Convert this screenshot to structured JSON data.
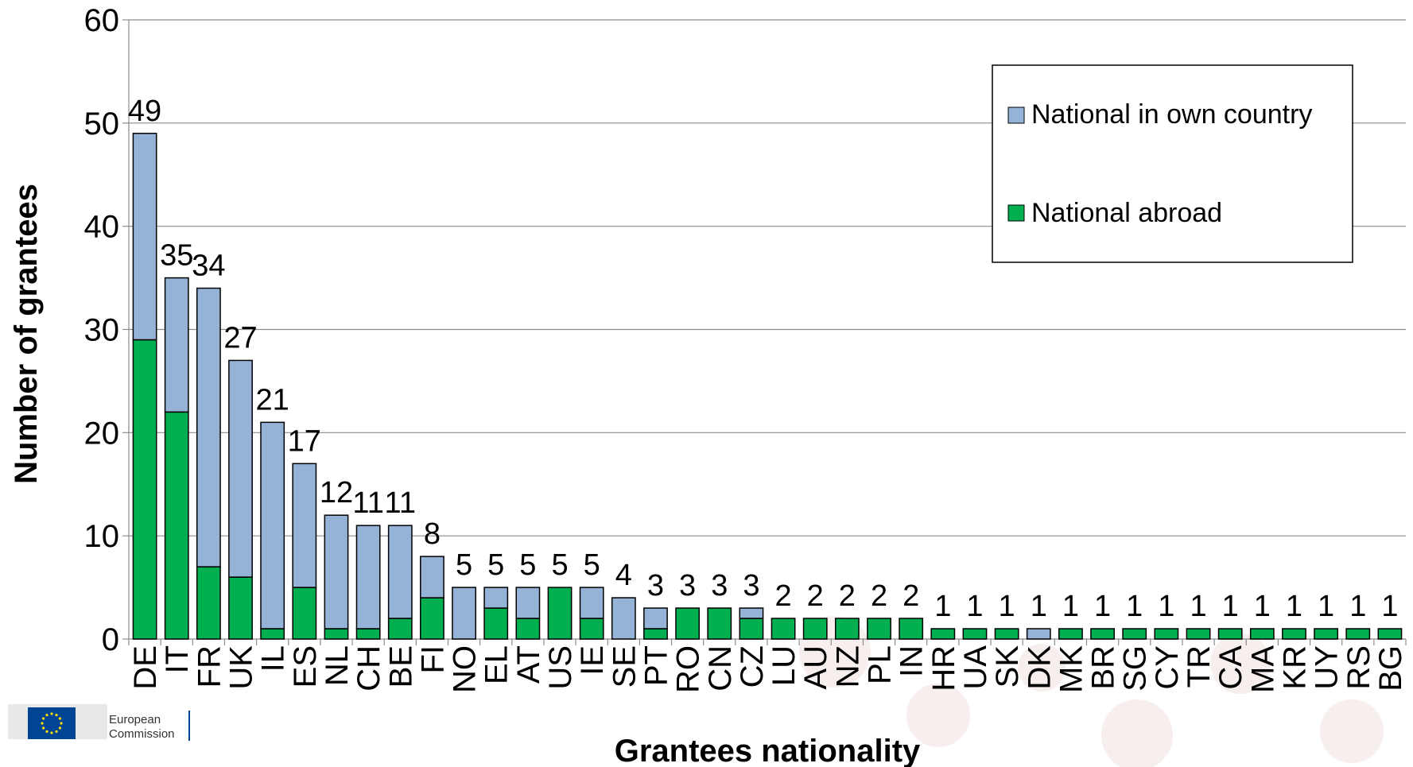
{
  "chart_data": {
    "type": "bar",
    "stacked": true,
    "xlabel": "Grantees nationality",
    "ylabel": "Number of grantees",
    "ylim": [
      0,
      60
    ],
    "yticks": [
      "0",
      "10",
      "20",
      "30",
      "40",
      "50",
      "60"
    ],
    "grid": true,
    "legend_position": "top-right",
    "categories": [
      "DE",
      "IT",
      "FR",
      "UK",
      "IL",
      "ES",
      "NL",
      "CH",
      "BE",
      "FI",
      "NO",
      "EL",
      "AT",
      "US",
      "IE",
      "SE",
      "PT",
      "RO",
      "CN",
      "CZ",
      "LU",
      "AU",
      "NZ",
      "PL",
      "IN",
      "HR",
      "UA",
      "SK",
      "DK",
      "MK",
      "BR",
      "SG",
      "CY",
      "TR",
      "CA",
      "MA",
      "KR",
      "UY",
      "RS",
      "BG"
    ],
    "series": [
      {
        "name": "National abroad",
        "color": "#00b050",
        "values": [
          29,
          22,
          7,
          6,
          1,
          5,
          1,
          1,
          2,
          4,
          0,
          3,
          2,
          5,
          2,
          0,
          1,
          3,
          3,
          2,
          2,
          2,
          2,
          2,
          2,
          1,
          1,
          1,
          0,
          1,
          1,
          1,
          1,
          1,
          1,
          1,
          1,
          1,
          1,
          1
        ]
      },
      {
        "name": "National in own country",
        "color": "#95b3d7",
        "values": [
          20,
          13,
          27,
          21,
          20,
          12,
          11,
          10,
          9,
          4,
          5,
          2,
          3,
          0,
          3,
          4,
          2,
          0,
          0,
          1,
          0,
          0,
          0,
          0,
          0,
          0,
          0,
          0,
          1,
          0,
          0,
          0,
          0,
          0,
          0,
          0,
          0,
          0,
          0,
          0
        ]
      }
    ],
    "totals": [
      "49",
      "35",
      "34",
      "27",
      "21",
      "17",
      "12",
      "11",
      "11",
      "8",
      "5",
      "5",
      "5",
      "5",
      "5",
      "4",
      "3",
      "3",
      "3",
      "3",
      "2",
      "2",
      "2",
      "2",
      "2",
      "1",
      "1",
      "1",
      "1",
      "1",
      "1",
      "1",
      "1",
      "1",
      "1",
      "1",
      "1",
      "1",
      "1",
      "1"
    ],
    "legend": [
      "National in own country",
      "National abroad"
    ]
  },
  "logo": {
    "line1": "European",
    "line2": "Commission",
    "flag_color": "#004494",
    "star_color": "#ffdd00"
  }
}
